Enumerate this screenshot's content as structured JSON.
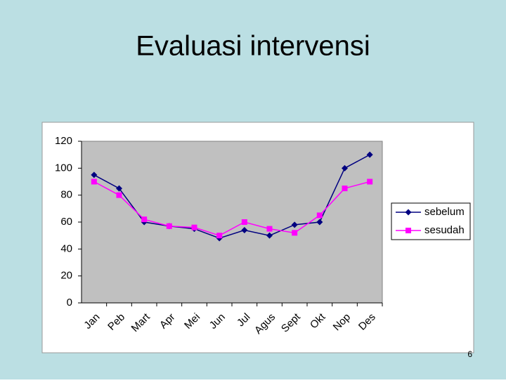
{
  "title": "Evaluasi intervensi",
  "slide_number": "6",
  "chart_data": {
    "type": "line",
    "categories": [
      "Jan",
      "Peb",
      "Mart",
      "Apr",
      "Mei",
      "Jun",
      "Jul",
      "Agus",
      "Sept",
      "Okt",
      "Nop",
      "Des"
    ],
    "series": [
      {
        "name": "sebelum",
        "color": "#000080",
        "marker": "diamond",
        "values": [
          95,
          85,
          60,
          57,
          55,
          48,
          54,
          50,
          58,
          60,
          100,
          110
        ]
      },
      {
        "name": "sesudah",
        "color": "#ff00ff",
        "marker": "square",
        "values": [
          90,
          80,
          62,
          57,
          56,
          50,
          60,
          55,
          52,
          65,
          85,
          90
        ]
      }
    ],
    "ylim": [
      0,
      120
    ],
    "yticks": [
      0,
      20,
      40,
      60,
      80,
      100,
      120
    ],
    "grid": false,
    "legend": "right"
  }
}
